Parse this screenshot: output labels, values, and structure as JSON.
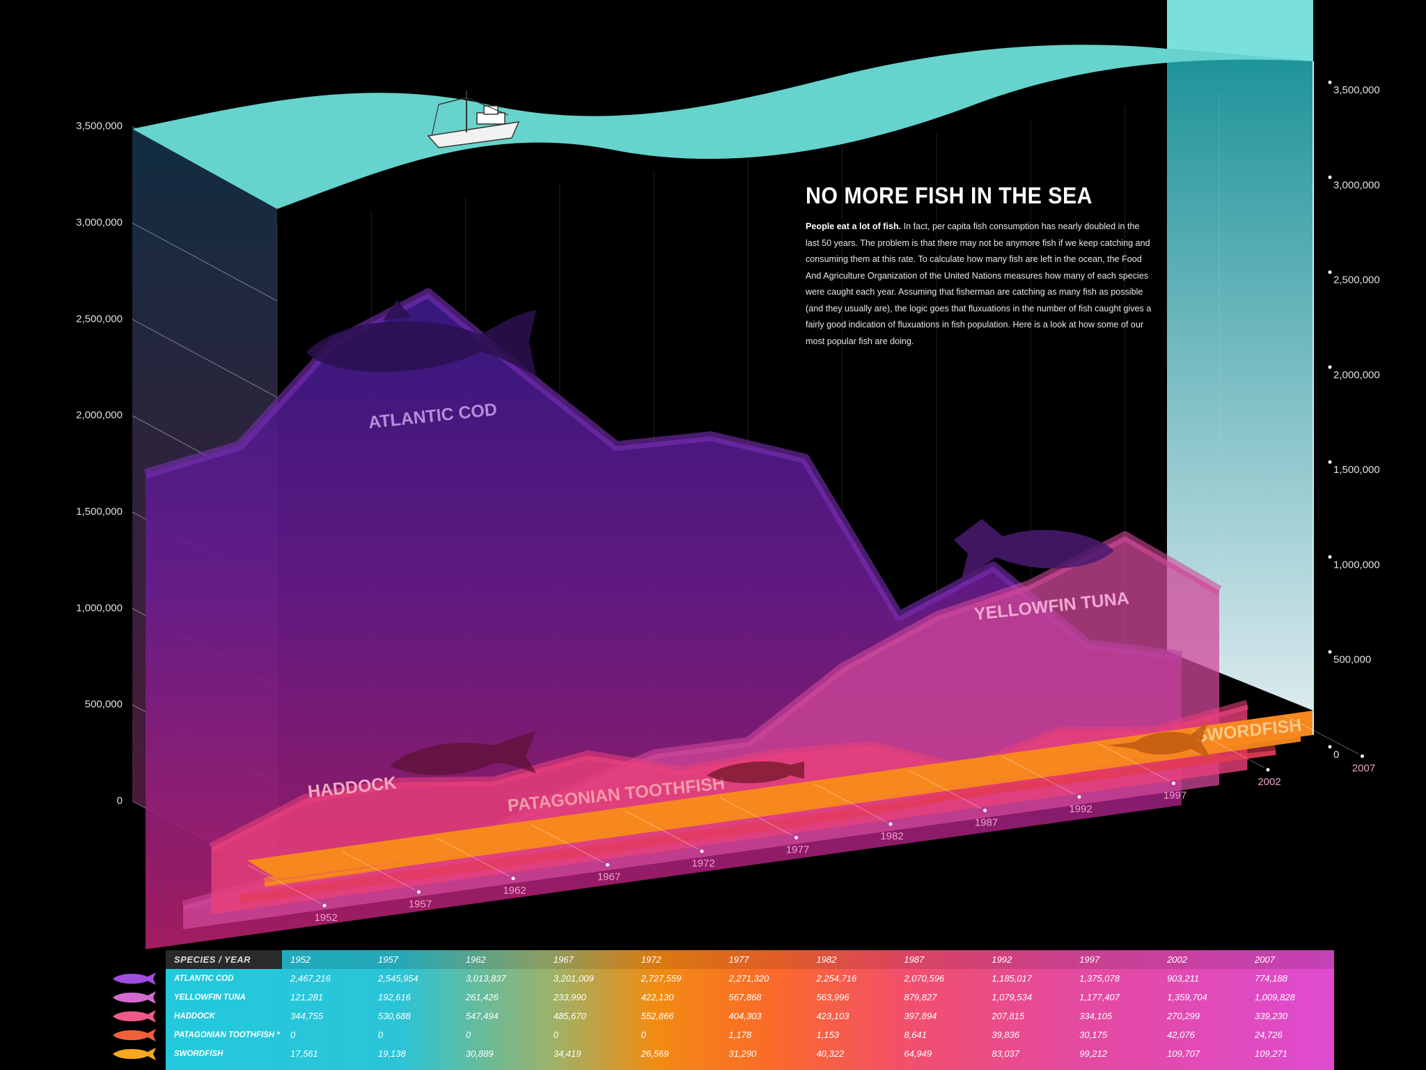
{
  "title": "NO MORE FISH IN THE SEA",
  "intro": {
    "bold": "People eat a lot of fish.",
    "text": " In fact, per capita fish consumption has nearly doubled in the last 50 years. The problem is that there may not be anymore fish if we keep catching and consuming them at this rate. To calculate how many fish are left in the ocean, the Food And Agriculture Organization of the United Nations measures how many of each species were caught each year. Assuming that fisherman are catching as many fish as possible (and they usually are), the logic goes that fluxuations in the number of fish caught gives a fairly good indication of fluxuations in fish population. Here is a look at how some of our most popular fish are doing."
  },
  "chart_data": {
    "type": "area",
    "categories": [
      "1952",
      "1957",
      "1962",
      "1967",
      "1972",
      "1977",
      "1982",
      "1987",
      "1992",
      "1997",
      "2002",
      "2007"
    ],
    "y_ticks": [
      "0",
      "500,000",
      "1,000,000",
      "1,500,000",
      "2,000,000",
      "2,500,000",
      "3,000,000",
      "3,500,000"
    ],
    "ylim": [
      0,
      3500000
    ],
    "series": [
      {
        "name": "ATLANTIC COD",
        "color": "#7a2fb6",
        "values": [
          2467216,
          2545954,
          3013837,
          3201009,
          2727559,
          2271320,
          2254716,
          2070596,
          1185017,
          1375078,
          903211,
          774188
        ]
      },
      {
        "name": "YELLOWFIN TUNA",
        "color": "#d0489a",
        "values": [
          121281,
          192616,
          261426,
          233990,
          422130,
          567868,
          563996,
          879827,
          1079534,
          1177407,
          1359704,
          1009828
        ]
      },
      {
        "name": "HADDOCK",
        "color": "#e8407a",
        "values": [
          344755,
          530688,
          547494,
          485670,
          552866,
          404303,
          423103,
          397894,
          207815,
          334105,
          270299,
          339230
        ]
      },
      {
        "name": "PATAGONIAN TOOTHFISH",
        "color": "#e23a55",
        "values": [
          0,
          0,
          0,
          0,
          0,
          1178,
          1153,
          8641,
          39836,
          30175,
          42076,
          24726
        ]
      },
      {
        "name": "SWORDFISH",
        "color": "#f7881e",
        "values": [
          17561,
          19138,
          30889,
          34419,
          26569,
          31290,
          40322,
          64949,
          83037,
          99212,
          109707,
          109271
        ]
      }
    ]
  },
  "table": {
    "header": "SPECIES / YEAR",
    "rows": [
      {
        "species": "ATLANTIC COD",
        "fish_color": "#a14de0",
        "values": [
          "2,467,216",
          "2,545,954",
          "3,013,837",
          "3,201,009",
          "2,727,559",
          "2,271,320",
          "2,254,716",
          "2,070,596",
          "1,185,017",
          "1,375,078",
          "903,211",
          "774,188"
        ]
      },
      {
        "species": "YELLOWFIN TUNA",
        "fish_color": "#d76ad0",
        "values": [
          "121,281",
          "192,616",
          "261,426",
          "233,990",
          "422,130",
          "567,868",
          "563,996",
          "879,827",
          "1,079,534",
          "1,177,407",
          "1,359,704",
          "1,009,828"
        ]
      },
      {
        "species": "HADDOCK",
        "fish_color": "#ef5a8e",
        "values": [
          "344,755",
          "530,688",
          "547,494",
          "485,670",
          "552,866",
          "404,303",
          "423,103",
          "397,894",
          "207,815",
          "334,105",
          "270,299",
          "339,230"
        ]
      },
      {
        "species": "PATAGONIAN TOOTHFISH *",
        "fish_color": "#f0603a",
        "values": [
          "0",
          "0",
          "0",
          "0",
          "0",
          "1,178",
          "1,153",
          "8,641",
          "39,836",
          "30,175",
          "42,076",
          "24,726"
        ]
      },
      {
        "species": "SWORDFISH",
        "fish_color": "#f7a81e",
        "values": [
          "17,561",
          "19,138",
          "30,889",
          "34,419",
          "26,569",
          "31,290",
          "40,322",
          "64,949",
          "83,037",
          "99,212",
          "109,707",
          "109,271"
        ]
      }
    ]
  }
}
